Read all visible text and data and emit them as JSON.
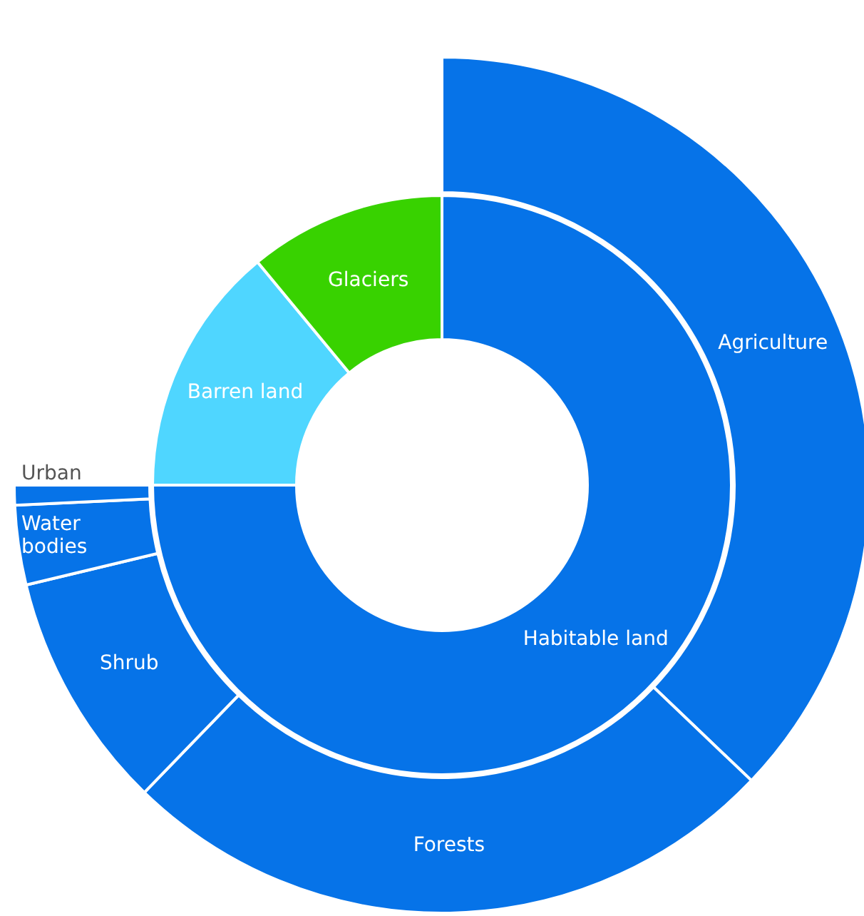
{
  "chart_data": [
    {
      "type": "donut",
      "categories": [
        "Habitable land",
        "Barren land",
        "Glaciers"
      ],
      "values": [
        75,
        14,
        11
      ],
      "colors": [
        "#0673e8",
        "#4fd6ff",
        "#38d200"
      ]
    },
    {
      "type": "donut",
      "categories": [
        "Agriculture",
        "Forests",
        "Shrub",
        "Water bodies",
        "Urban"
      ],
      "values": [
        49.5,
        33.5,
        12,
        4,
        1
      ],
      "colors": [
        "#0673e8",
        "#0673e8",
        "#0673e8",
        "#0673e8",
        "#0673e8"
      ]
    }
  ]
}
